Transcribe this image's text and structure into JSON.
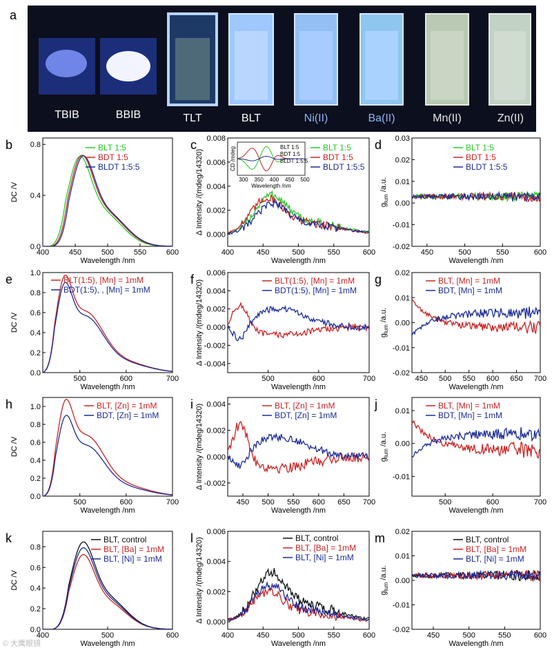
{
  "colors": {
    "green": "#22cc22",
    "red": "#cc2222",
    "blue": "#1a2a99",
    "black": "#111111",
    "photo_bg": "#0c0f1e"
  },
  "panel_a": {
    "label": "a",
    "samples": [
      {
        "name": "TBIB",
        "color": "#ffffff"
      },
      {
        "name": "BBIB",
        "color": "#ffffff"
      },
      {
        "name": "TLT",
        "color": "#ffffff"
      },
      {
        "name": "BLT",
        "color": "#ffffff"
      },
      {
        "name": "Ni(II)",
        "color": "#8fb4f0"
      },
      {
        "name": "Ba(II)",
        "color": "#8fb4f0"
      },
      {
        "name": "Mn(II)",
        "color": "#e8e8e8"
      },
      {
        "name": "Zn(II)",
        "color": "#e8e8e8"
      }
    ]
  },
  "watermark": "© 大鹰眼镜",
  "chart_data": [
    {
      "id": "b",
      "type": "line",
      "xlabel": "Wavelength /nm",
      "ylabel": "DC /V",
      "xlim": [
        400,
        600
      ],
      "ylim": [
        0,
        0.85
      ],
      "xticks": [
        400,
        450,
        500,
        550,
        600
      ],
      "yticks": [
        0.0,
        0.4,
        0.8
      ],
      "ytick_labels": [
        "0.0",
        "0.4",
        "0.8"
      ],
      "series": [
        {
          "name": "BLT 1:5",
          "color": "green",
          "kind": "smooth",
          "peak": 455,
          "amp": 0.75,
          "noise": 0
        },
        {
          "name": "BDT 1:5",
          "color": "red",
          "kind": "smooth",
          "peak": 458,
          "amp": 0.76,
          "noise": 0
        },
        {
          "name": "BLDT 1:5:5",
          "color": "blue",
          "kind": "smooth",
          "peak": 460,
          "amp": 0.755,
          "noise": 0
        }
      ]
    },
    {
      "id": "c",
      "type": "line",
      "xlabel": "Wavelength /nm",
      "ylabel": "Δ Intensity /(mdeg/14320)",
      "xlim": [
        400,
        600
      ],
      "ylim": [
        -0.001,
        0.008
      ],
      "xticks": [
        400,
        450,
        500,
        550,
        600
      ],
      "yticks": [
        0.0,
        0.002,
        0.004,
        0.006,
        0.008
      ],
      "ytick_labels": [
        "0.000",
        "0.002",
        "0.004",
        "0.006",
        "0.008"
      ],
      "series": [
        {
          "name": "BLT 1:5",
          "color": "green",
          "kind": "cpl",
          "peak": 460,
          "amp": 0.0028,
          "noise": 0.0007
        },
        {
          "name": "BDT 1:5",
          "color": "red",
          "kind": "cpl",
          "peak": 455,
          "amp": 0.0026,
          "noise": 0.0007
        },
        {
          "name": "BLDT 1:5:5",
          "color": "blue",
          "kind": "cpl",
          "peak": 462,
          "amp": 0.0022,
          "noise": 0.0006
        }
      ],
      "inset": {
        "xlabel": "Wavelength /nm",
        "ylabel": "CD /mdeg",
        "xticks": [
          300,
          350,
          400,
          450,
          500
        ],
        "xlim": [
          280,
          500
        ],
        "series": [
          {
            "name": "BLT 1:5",
            "color": "green"
          },
          {
            "name": "BDT 1:5",
            "color": "red"
          },
          {
            "name": "BLDT 1:5:5",
            "color": "blue"
          }
        ]
      }
    },
    {
      "id": "d",
      "type": "line",
      "xlabel": "Wavelength /nm",
      "ylabel": "g_lum /a.u.",
      "xlim": [
        430,
        600
      ],
      "ylim": [
        -0.02,
        0.03
      ],
      "xticks": [
        450,
        500,
        550,
        600
      ],
      "yticks": [
        -0.02,
        -0.01,
        0.0,
        0.01,
        0.02,
        0.03
      ],
      "ytick_labels": [
        "-0.02",
        "-0.01",
        "0.00",
        "0.01",
        "0.02",
        "0.03"
      ],
      "series": [
        {
          "name": "BLT 1:5",
          "color": "green",
          "kind": "glum",
          "level": 0.003,
          "noise": 0.003
        },
        {
          "name": "BDT 1:5",
          "color": "red",
          "kind": "glum",
          "level": 0.003,
          "noise": 0.003
        },
        {
          "name": "BLDT 1:5:5",
          "color": "blue",
          "kind": "glum",
          "level": 0.003,
          "noise": 0.003
        }
      ]
    },
    {
      "id": "e",
      "type": "line",
      "xlabel": "Wavelength /nm",
      "ylabel": "DC /V",
      "xlim": [
        420,
        700
      ],
      "ylim": [
        0,
        1.0
      ],
      "xticks": [
        500,
        600,
        700
      ],
      "yticks": [
        0.0,
        0.2,
        0.4,
        0.6,
        0.8,
        1.0
      ],
      "ytick_labels": [
        "0.0",
        "0.2",
        "0.4",
        "0.6",
        "0.8",
        "1.0"
      ],
      "series": [
        {
          "name": "BLT(1:5), [Mn] = 1mM",
          "color": "red",
          "kind": "shoulder",
          "peak": 465,
          "amp": 0.93,
          "noise": 0
        },
        {
          "name": "BDT(1:5), , [Mn] = 1mM",
          "color": "blue",
          "kind": "shoulder",
          "peak": 465,
          "amp": 0.86,
          "noise": 0
        }
      ]
    },
    {
      "id": "f",
      "type": "line",
      "xlabel": "Wavelength /nm",
      "ylabel": "Δ Intensity /(mdeg/14320)",
      "xlim": [
        420,
        700
      ],
      "ylim": [
        -0.005,
        0.006
      ],
      "xticks": [
        500,
        600,
        700
      ],
      "yticks": [
        -0.004,
        -0.002,
        0.0,
        0.002,
        0.004,
        0.006
      ],
      "ytick_labels": [
        "-0.004",
        "-0.002",
        "0.000",
        "0.002",
        "0.004",
        "0.006"
      ],
      "series": [
        {
          "name": "BLT(1:5), [Mn] = 1mM",
          "color": "red",
          "kind": "signed",
          "peak": 445,
          "amp": 0.0028,
          "noise": 0.0007
        },
        {
          "name": "BDT(1:5), [Mn] = 1mM",
          "color": "blue",
          "kind": "signed",
          "peak": 445,
          "amp": -0.002,
          "noise": 0.0007,
          "late": 0.002
        }
      ]
    },
    {
      "id": "g",
      "type": "line",
      "xlabel": "Wavelength /nm",
      "ylabel": "g_lum /a.u.",
      "xlim": [
        430,
        700
      ],
      "ylim": [
        -0.02,
        0.02
      ],
      "xticks": [
        450,
        500,
        550,
        600,
        650,
        700
      ],
      "yticks": [
        -0.02,
        -0.01,
        0.0,
        0.01,
        0.02
      ],
      "ytick_labels": [
        "-0.02",
        "-0.01",
        "0.00",
        "0.01",
        "0.02"
      ],
      "series": [
        {
          "name": "BLT, [Mn] = 1mM",
          "color": "red",
          "kind": "gdecay",
          "start": 0.009,
          "end": -0.002,
          "noise": 0.003
        },
        {
          "name": "BDT, [Mn] = 1mM",
          "color": "blue",
          "kind": "gdecay",
          "start": -0.005,
          "end": 0.004,
          "noise": 0.003
        }
      ]
    },
    {
      "id": "h",
      "type": "line",
      "xlabel": "Wavelength /nm",
      "ylabel": "DC /V",
      "xlim": [
        420,
        700
      ],
      "ylim": [
        0,
        1.1
      ],
      "xticks": [
        500,
        600,
        700
      ],
      "yticks": [
        0.0,
        0.2,
        0.4,
        0.6,
        0.8,
        1.0
      ],
      "ytick_labels": [
        "0.0",
        "0.2",
        "0.4",
        "0.6",
        "0.8",
        "1.0"
      ],
      "series": [
        {
          "name": "BLT, [Zn] = 1mM",
          "color": "red",
          "kind": "shoulder",
          "peak": 467,
          "amp": 1.03,
          "noise": 0
        },
        {
          "name": "BDT, [Zn] = 1mM",
          "color": "blue",
          "kind": "shoulder",
          "peak": 467,
          "amp": 0.86,
          "noise": 0
        }
      ]
    },
    {
      "id": "i",
      "type": "line",
      "xlabel": "Wavelength /nm",
      "ylabel": "Δ Intensity /(mdeg/14320)",
      "xlim": [
        420,
        700
      ],
      "ylim": [
        -0.003,
        0.0045
      ],
      "xticks": [
        450,
        500,
        550,
        600,
        650,
        700
      ],
      "yticks": [
        -0.002,
        0.0,
        0.002,
        0.004
      ],
      "ytick_labels": [
        "-0.002",
        "0.000",
        "0.002",
        "0.004"
      ],
      "series": [
        {
          "name": "BLT, [Zn] = 1mM",
          "color": "red",
          "kind": "signed",
          "peak": 445,
          "amp": 0.0028,
          "noise": 0.0008
        },
        {
          "name": "BDT, [Zn] = 1mM",
          "color": "blue",
          "kind": "signed",
          "peak": 445,
          "amp": -0.0012,
          "noise": 0.0006,
          "late": 0.0015
        }
      ]
    },
    {
      "id": "j",
      "type": "line",
      "xlabel": "Wavelength /nm",
      "ylabel": "g_lum /a.u.",
      "xlim": [
        430,
        700
      ],
      "ylim": [
        -0.016,
        0.014
      ],
      "xticks": [
        500,
        600,
        700
      ],
      "yticks": [
        -0.01,
        0.0,
        0.01
      ],
      "ytick_labels": [
        "-0.01",
        "0.00",
        "0.01"
      ],
      "series": [
        {
          "name": "BLT, [Mn] = 1mM",
          "color": "red",
          "kind": "gdecay",
          "start": 0.007,
          "end": -0.002,
          "noise": 0.003
        },
        {
          "name": "BDT, [Mn] = 1mM",
          "color": "blue",
          "kind": "gdecay",
          "start": -0.004,
          "end": 0.003,
          "noise": 0.0025
        }
      ]
    },
    {
      "id": "k",
      "type": "line",
      "xlabel": "Wavelength /nm",
      "ylabel": "DC /V",
      "xlim": [
        400,
        600
      ],
      "ylim": [
        0,
        0.95
      ],
      "xticks": [
        400,
        500,
        600
      ],
      "yticks": [
        0.0,
        0.2,
        0.4,
        0.6,
        0.8
      ],
      "ytick_labels": [
        "0.0",
        "0.2",
        "0.4",
        "0.6",
        "0.8"
      ],
      "series": [
        {
          "name": "BLT, control",
          "color": "black",
          "kind": "smooth",
          "peak": 460,
          "amp": 0.9,
          "noise": 0
        },
        {
          "name": "BLT, [Ba] = 1mM",
          "color": "red",
          "kind": "smooth",
          "peak": 460,
          "amp": 0.77,
          "noise": 0
        },
        {
          "name": "BLT, [Ni] = 1mM",
          "color": "blue",
          "kind": "smooth",
          "peak": 460,
          "amp": 0.84,
          "noise": 0
        }
      ]
    },
    {
      "id": "l",
      "type": "line",
      "xlabel": "Wavelength /nm",
      "ylabel": "Δ Intensity /(mdeg/14320)",
      "xlim": [
        400,
        600
      ],
      "ylim": [
        -0.0005,
        0.006
      ],
      "xticks": [
        400,
        450,
        500,
        550,
        600
      ],
      "yticks": [
        0.0,
        0.002,
        0.004,
        0.006
      ],
      "ytick_labels": [
        "0.000",
        "0.002",
        "0.004",
        "0.006"
      ],
      "series": [
        {
          "name": "BLT, control",
          "color": "black",
          "kind": "cpl",
          "peak": 460,
          "amp": 0.0028,
          "noise": 0.0007
        },
        {
          "name": "BLT, [Ba] = 1mM",
          "color": "red",
          "kind": "cpl",
          "peak": 455,
          "amp": 0.0017,
          "noise": 0.0006
        },
        {
          "name": "BLT, [Ni] = 1mM",
          "color": "blue",
          "kind": "cpl",
          "peak": 458,
          "amp": 0.0021,
          "noise": 0.0006
        }
      ]
    },
    {
      "id": "m",
      "type": "line",
      "xlabel": "Wavelength /nm",
      "ylabel": "g_lum /a.u.",
      "xlim": [
        420,
        600
      ],
      "ylim": [
        -0.02,
        0.02
      ],
      "xticks": [
        450,
        500,
        550,
        600
      ],
      "yticks": [
        -0.02,
        -0.01,
        0.0,
        0.01,
        0.02
      ],
      "ytick_labels": [
        "-0.02",
        "-0.01",
        "0.00",
        "0.01",
        "0.02"
      ],
      "series": [
        {
          "name": "BLT, control",
          "color": "black",
          "kind": "glum",
          "level": 0.002,
          "noise": 0.003
        },
        {
          "name": "BLT, [Ba] = 1mM",
          "color": "red",
          "kind": "glum",
          "level": 0.002,
          "noise": 0.003
        },
        {
          "name": "BLT, [Ni] = 1mM",
          "color": "blue",
          "kind": "glum",
          "level": 0.002,
          "noise": 0.003
        }
      ]
    }
  ]
}
